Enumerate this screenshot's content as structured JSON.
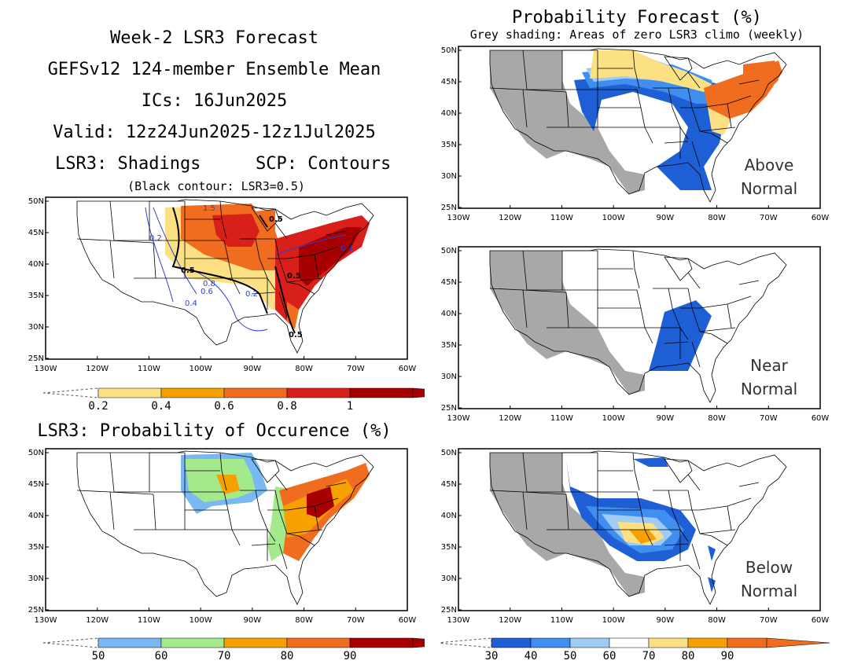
{
  "header": {
    "line1": "Week-2 LSR3 Forecast",
    "line2": "GEFSv12 124-member Ensemble Mean",
    "line3": "ICs: 16Jun2025",
    "line4": "Valid: 12z24Jun2025-12z1Jul2025",
    "shadings": "LSR3: Shadings",
    "contours": "SCP: Contours",
    "note": "(Black contour: LSR3=0.5)"
  },
  "prob_header": {
    "title": "Probability Forecast (%)",
    "subtitle": "Grey shading: Areas of zero LSR3 climo (weekly)"
  },
  "occurrence_title": "LSR3: Probability of Occurence (%)",
  "axes": {
    "lat_labels": [
      "50N",
      "45N",
      "40N",
      "35N",
      "30N",
      "25N"
    ],
    "lon_labels": [
      "130W",
      "120W",
      "110W",
      "100W",
      "90W",
      "80W",
      "70W",
      "60W"
    ]
  },
  "panels": {
    "lsr3": {
      "contours": [
        "1.5",
        "0.5",
        "0.2",
        "0.5",
        "0.8",
        "0.6",
        "0.4",
        "0.2",
        "0.4",
        "0.5",
        "0.5"
      ]
    },
    "above": {
      "label1": "Above",
      "label2": "Normal"
    },
    "near": {
      "label1": "Near",
      "label2": "Normal"
    },
    "below": {
      "label1": "Below",
      "label2": "Normal"
    }
  },
  "colorbars": {
    "lsr3": {
      "labels": [
        "0.2",
        "0.4",
        "0.6",
        "0.8",
        "1"
      ],
      "colors": [
        "#fbe184",
        "#f7a100",
        "#f06d1f",
        "#d81f1a",
        "#a80000"
      ]
    },
    "occ": {
      "labels": [
        "50",
        "60",
        "70",
        "80",
        "90"
      ],
      "colors": [
        "#79b8f2",
        "#a4ea8c",
        "#f7a100",
        "#f06d1f",
        "#a80000"
      ]
    },
    "prob": {
      "labels": [
        "30",
        "40",
        "50",
        "60",
        "70",
        "80",
        "90"
      ],
      "colors": [
        "#1f5fd6",
        "#3f8ef0",
        "#a0cbf3",
        "#ffffff",
        "#fbe184",
        "#f7a100",
        "#f06d1f"
      ]
    }
  },
  "colors": {
    "grey_climo": "#a8a8a8",
    "shade_warm": [
      "#fbe184",
      "#f7a100",
      "#f06d1f",
      "#d81f1a",
      "#a80000"
    ],
    "shade_blue": [
      "#1f5fd6",
      "#3f8ef0",
      "#a0cbf3"
    ],
    "shade_green": [
      "#a4ea8c",
      "#79b8f2"
    ],
    "contour_blue": "#2a3fd8"
  }
}
